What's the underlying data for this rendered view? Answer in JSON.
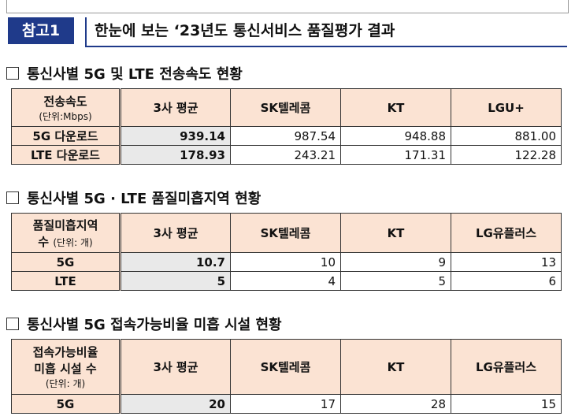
{
  "header": {
    "badge": "참고1",
    "title": "한눈에 보는 ‘23년도 통신서비스 품질평가 결과"
  },
  "section1": {
    "title": "통신사별 5G 및 LTE 전송속도 현황",
    "corner_label": "전송속도",
    "corner_unit": "(단위:Mbps)",
    "columns": [
      "3사 평균",
      "SK텔레콤",
      "KT",
      "LGU+"
    ],
    "rows": [
      {
        "label": "5G 다운로드",
        "values": [
          "939.14",
          "987.54",
          "948.88",
          "881.00"
        ]
      },
      {
        "label": "LTE 다운로드",
        "values": [
          "178.93",
          "243.21",
          "171.31",
          "122.28"
        ]
      }
    ]
  },
  "section2": {
    "title": "통신사별 5G · LTE 품질미흡지역 현황",
    "corner_label_line1": "품질미흡지역",
    "corner_label_line2": "수",
    "corner_unit": "(단위: 개)",
    "columns": [
      "3사 평균",
      "SK텔레콤",
      "KT",
      "LG유플러스"
    ],
    "rows": [
      {
        "label": "5G",
        "values": [
          "10.7",
          "10",
          "9",
          "13"
        ]
      },
      {
        "label": "LTE",
        "values": [
          "5",
          "4",
          "5",
          "6"
        ]
      }
    ]
  },
  "section3": {
    "title": "통신사별 5G 접속가능비율 미흡 시설 현황",
    "corner_label_line1": "접속가능비율",
    "corner_label_line2": "미흡 시설 수",
    "corner_unit": "(단위: 개)",
    "columns": [
      "3사 평균",
      "SK텔레콤",
      "KT",
      "LG유플러스"
    ],
    "rows": [
      {
        "label": "5G",
        "values": [
          "20",
          "17",
          "28",
          "15"
        ]
      }
    ]
  }
}
